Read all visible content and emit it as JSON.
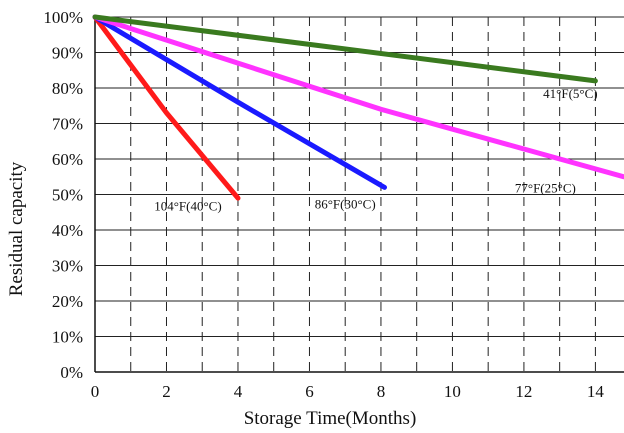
{
  "chart_data": {
    "type": "line",
    "xlabel": "Storage Time(Months)",
    "ylabel": "Residual capacity",
    "xlim": [
      0,
      14.8
    ],
    "ylim": [
      0,
      100
    ],
    "x_ticks": [
      0,
      2,
      4,
      6,
      8,
      10,
      12,
      14
    ],
    "x_tick_labels": [
      "0",
      "2",
      "4",
      "6",
      "8",
      "10",
      "12",
      "14"
    ],
    "y_ticks": [
      0,
      10,
      20,
      30,
      40,
      50,
      60,
      70,
      80,
      90,
      100
    ],
    "y_tick_labels": [
      "0%",
      "10%",
      "20%",
      "30%",
      "40%",
      "50%",
      "60%",
      "70%",
      "80%",
      "90%",
      "100%"
    ],
    "grid": {
      "horizontal": "solid",
      "vertical": "dashed",
      "vertical_every": 1
    },
    "series": [
      {
        "color": "#ff1a1a",
        "x": [
          0,
          2,
          4
        ],
        "y": [
          100,
          73,
          49
        ]
      },
      {
        "color": "#1a1aff",
        "x": [
          0,
          4,
          8.1
        ],
        "y": [
          100,
          76,
          52
        ]
      },
      {
        "color": "#ff33ff",
        "x": [
          0,
          8,
          14.8
        ],
        "y": [
          100,
          74,
          55
        ]
      },
      {
        "color": "#3a7a1f",
        "x": [
          0,
          14
        ],
        "y": [
          100,
          82
        ]
      }
    ],
    "annotations": [
      {
        "text": "104°F(40°C)",
        "x": 2.6,
        "y": 45.5
      },
      {
        "text": "86°F(30°C)",
        "x": 7.0,
        "y": 46.0
      },
      {
        "text": "77°F(25°C)",
        "x": 12.6,
        "y": 50.5
      },
      {
        "text": "41°F(5°C)",
        "x": 13.3,
        "y": 77.2
      }
    ]
  }
}
